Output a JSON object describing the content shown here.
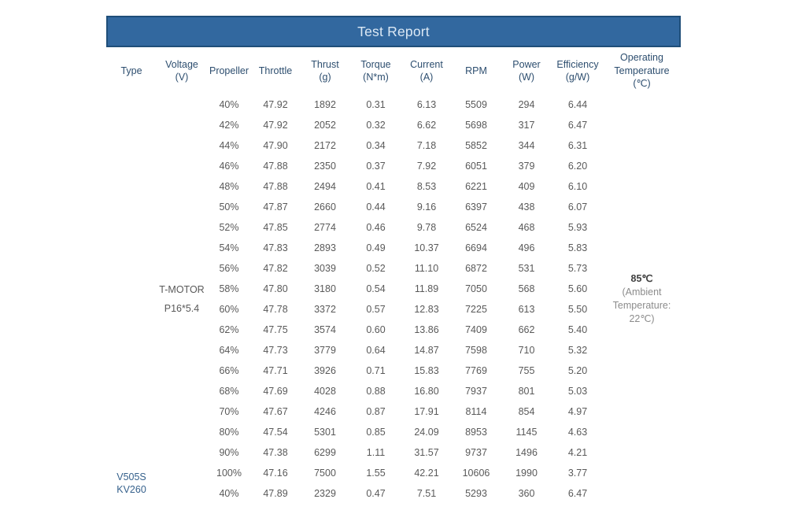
{
  "title": "Test Report",
  "colors": {
    "header_bg": "#32689F",
    "header_border": "#1F4E79",
    "title_text": "#DCE9F5",
    "col_header_text": "#2D4E6F",
    "data_text": "#595959",
    "motor_type_text": "#36618C",
    "temp_value_text": "#404040",
    "temp_note_text": "#8C8C8C",
    "page_bg": "#FFFFFF"
  },
  "table": {
    "columns": [
      {
        "label": "Type",
        "unit": ""
      },
      {
        "label": "Voltage",
        "unit": "(V)"
      },
      {
        "label": "Propeller",
        "unit": ""
      },
      {
        "label": "Throttle",
        "unit": ""
      },
      {
        "label": "Thrust",
        "unit": "(g)"
      },
      {
        "label": "Torque",
        "unit": "(N*m)"
      },
      {
        "label": "Current",
        "unit": "(A)"
      },
      {
        "label": "RPM",
        "unit": ""
      },
      {
        "label": "Power",
        "unit": "(W)"
      },
      {
        "label": "Efficiency",
        "unit": "(g/W)"
      },
      {
        "label": "Operating Temperature",
        "unit": "(℃)"
      }
    ],
    "motor_type_lines": [
      "V505S",
      "KV260"
    ],
    "propeller_lines": [
      "T-MOTOR",
      "P16*5.4"
    ],
    "operating_temperature": {
      "value": "85℃",
      "note_lines": [
        "(Ambient",
        "Temperature:",
        "22℃)"
      ]
    },
    "rows": [
      [
        "40%",
        "47.92",
        "1892",
        "0.31",
        "6.13",
        "5509",
        "294",
        "6.44"
      ],
      [
        "42%",
        "47.92",
        "2052",
        "0.32",
        "6.62",
        "5698",
        "317",
        "6.47"
      ],
      [
        "44%",
        "47.90",
        "2172",
        "0.34",
        "7.18",
        "5852",
        "344",
        "6.31"
      ],
      [
        "46%",
        "47.88",
        "2350",
        "0.37",
        "7.92",
        "6051",
        "379",
        "6.20"
      ],
      [
        "48%",
        "47.88",
        "2494",
        "0.41",
        "8.53",
        "6221",
        "409",
        "6.10"
      ],
      [
        "50%",
        "47.87",
        "2660",
        "0.44",
        "9.16",
        "6397",
        "438",
        "6.07"
      ],
      [
        "52%",
        "47.85",
        "2774",
        "0.46",
        "9.78",
        "6524",
        "468",
        "5.93"
      ],
      [
        "54%",
        "47.83",
        "2893",
        "0.49",
        "10.37",
        "6694",
        "496",
        "5.83"
      ],
      [
        "56%",
        "47.82",
        "3039",
        "0.52",
        "11.10",
        "6872",
        "531",
        "5.73"
      ],
      [
        "58%",
        "47.80",
        "3180",
        "0.54",
        "11.89",
        "7050",
        "568",
        "5.60"
      ],
      [
        "60%",
        "47.78",
        "3372",
        "0.57",
        "12.83",
        "7225",
        "613",
        "5.50"
      ],
      [
        "62%",
        "47.75",
        "3574",
        "0.60",
        "13.86",
        "7409",
        "662",
        "5.40"
      ],
      [
        "64%",
        "47.73",
        "3779",
        "0.64",
        "14.87",
        "7598",
        "710",
        "5.32"
      ],
      [
        "66%",
        "47.71",
        "3926",
        "0.71",
        "15.83",
        "7769",
        "755",
        "5.20"
      ],
      [
        "68%",
        "47.69",
        "4028",
        "0.88",
        "16.80",
        "7937",
        "801",
        "5.03"
      ],
      [
        "70%",
        "47.67",
        "4246",
        "0.87",
        "17.91",
        "8114",
        "854",
        "4.97"
      ],
      [
        "80%",
        "47.54",
        "5301",
        "0.85",
        "24.09",
        "8953",
        "1145",
        "4.63"
      ],
      [
        "90%",
        "47.38",
        "6299",
        "1.11",
        "31.57",
        "9737",
        "1496",
        "4.21"
      ],
      [
        "100%",
        "47.16",
        "7500",
        "1.55",
        "42.21",
        "10606",
        "1990",
        "3.77"
      ],
      [
        "40%",
        "47.89",
        "2329",
        "0.47",
        "7.51",
        "5293",
        "360",
        "6.47"
      ]
    ]
  }
}
